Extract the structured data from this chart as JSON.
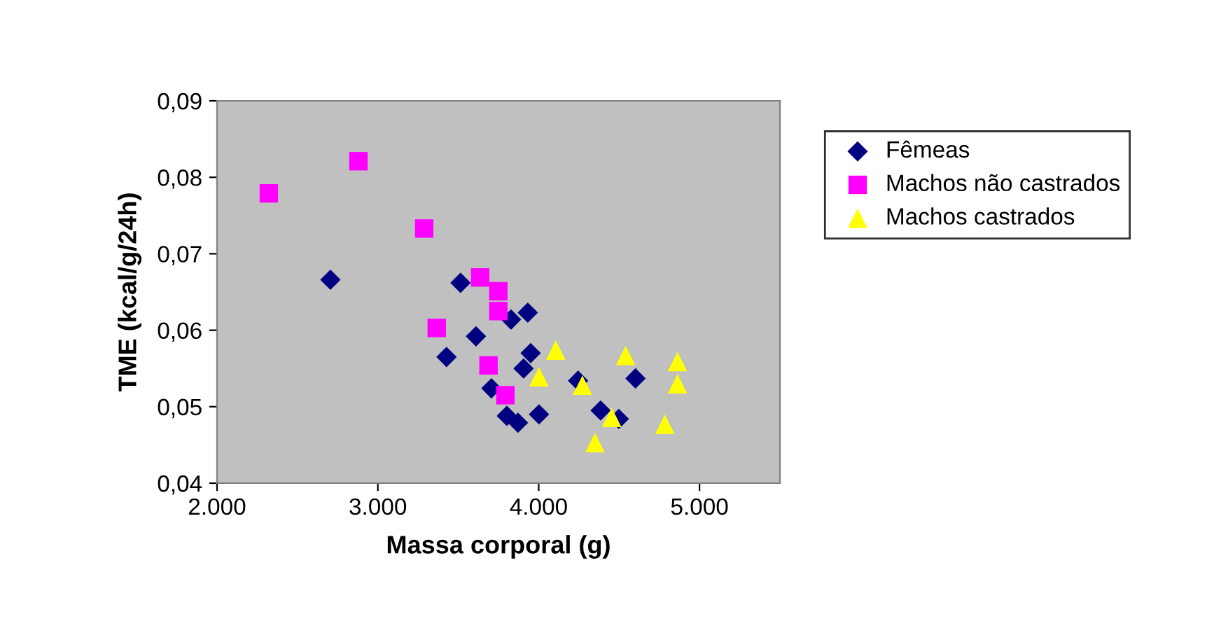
{
  "chart_data": {
    "type": "scatter",
    "xlabel": "Massa corporal (g)",
    "ylabel": "TME (kcal/g/24h)",
    "xlim": [
      2000,
      5500
    ],
    "xticks": [
      {
        "value": 2000,
        "label": "2.000"
      },
      {
        "value": 3000,
        "label": "3.000"
      },
      {
        "value": 4000,
        "label": "4.000"
      },
      {
        "value": 5000,
        "label": "5.000"
      }
    ],
    "ylim": [
      0.04,
      0.09
    ],
    "yticks": [
      {
        "value": 0.04,
        "label": "0,04"
      },
      {
        "value": 0.05,
        "label": "0,05"
      },
      {
        "value": 0.06,
        "label": "0,06"
      },
      {
        "value": 0.07,
        "label": "0,07"
      },
      {
        "value": 0.08,
        "label": "0,08"
      },
      {
        "value": 0.09,
        "label": "0,09"
      }
    ],
    "grid": false,
    "legend": "right",
    "series": [
      {
        "name": "Fêmeas",
        "color": "#000080",
        "marker": "diamond",
        "x": [
          2705,
          3514,
          3828,
          3932,
          3610,
          3427,
          3950,
          3906,
          3706,
          3802,
          3871,
          4002,
          4245,
          4602,
          4385,
          4498
        ],
        "values": [
          0.0666,
          0.0662,
          0.0614,
          0.0623,
          0.0592,
          0.0565,
          0.057,
          0.055,
          0.0524,
          0.0488,
          0.0479,
          0.049,
          0.0534,
          0.0537,
          0.0495,
          0.0484
        ]
      },
      {
        "name": "Machos não castrados",
        "color": "#ff00ff",
        "marker": "square",
        "x": [
          2322,
          2879,
          3288,
          3636,
          3749,
          3749,
          3366,
          3688,
          3793
        ],
        "values": [
          0.0779,
          0.0821,
          0.0733,
          0.0669,
          0.0651,
          0.0625,
          0.0603,
          0.0554,
          0.0515
        ]
      },
      {
        "name": "Machos castrados",
        "color": "#ffff00",
        "marker": "triangle",
        "x": [
          4106,
          4002,
          4272,
          4541,
          4863,
          4863,
          4454,
          4350,
          4785
        ],
        "values": [
          0.0574,
          0.0539,
          0.0528,
          0.0567,
          0.0559,
          0.053,
          0.0486,
          0.0453,
          0.0477
        ]
      }
    ]
  }
}
